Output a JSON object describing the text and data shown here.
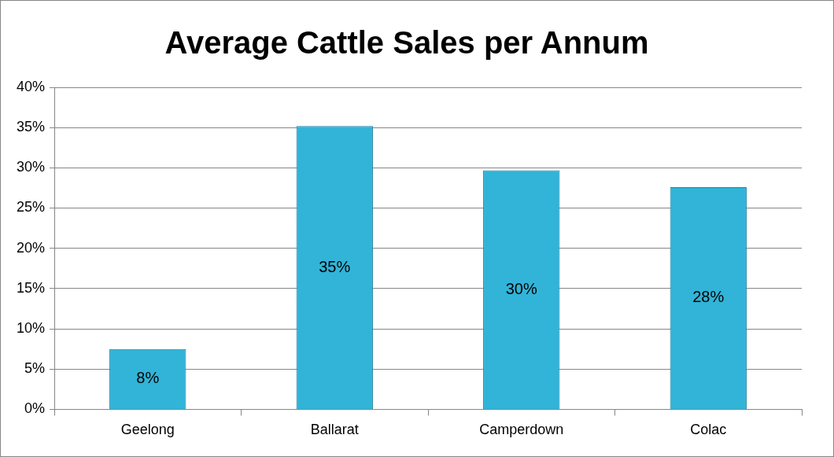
{
  "chart_data": {
    "type": "bar",
    "title": "Average Cattle Sales per Annum",
    "categories": [
      "Geelong",
      "Ballarat",
      "Camperdown",
      "Colac"
    ],
    "values": [
      7.5,
      35.2,
      29.7,
      27.6
    ],
    "value_labels": [
      "8%",
      "35%",
      "30%",
      "28%"
    ],
    "color": "#31b4d8",
    "ylim": [
      0,
      40
    ],
    "yticks": [
      {
        "value": 0,
        "label": "0%"
      },
      {
        "value": 5,
        "label": "5%"
      },
      {
        "value": 10,
        "label": "10%"
      },
      {
        "value": 15,
        "label": "15%"
      },
      {
        "value": 20,
        "label": "20%"
      },
      {
        "value": 25,
        "label": "25%"
      },
      {
        "value": 30,
        "label": "30%"
      },
      {
        "value": 35,
        "label": "35%"
      },
      {
        "value": 40,
        "label": "40%"
      }
    ],
    "grid": "y",
    "legend": false
  }
}
